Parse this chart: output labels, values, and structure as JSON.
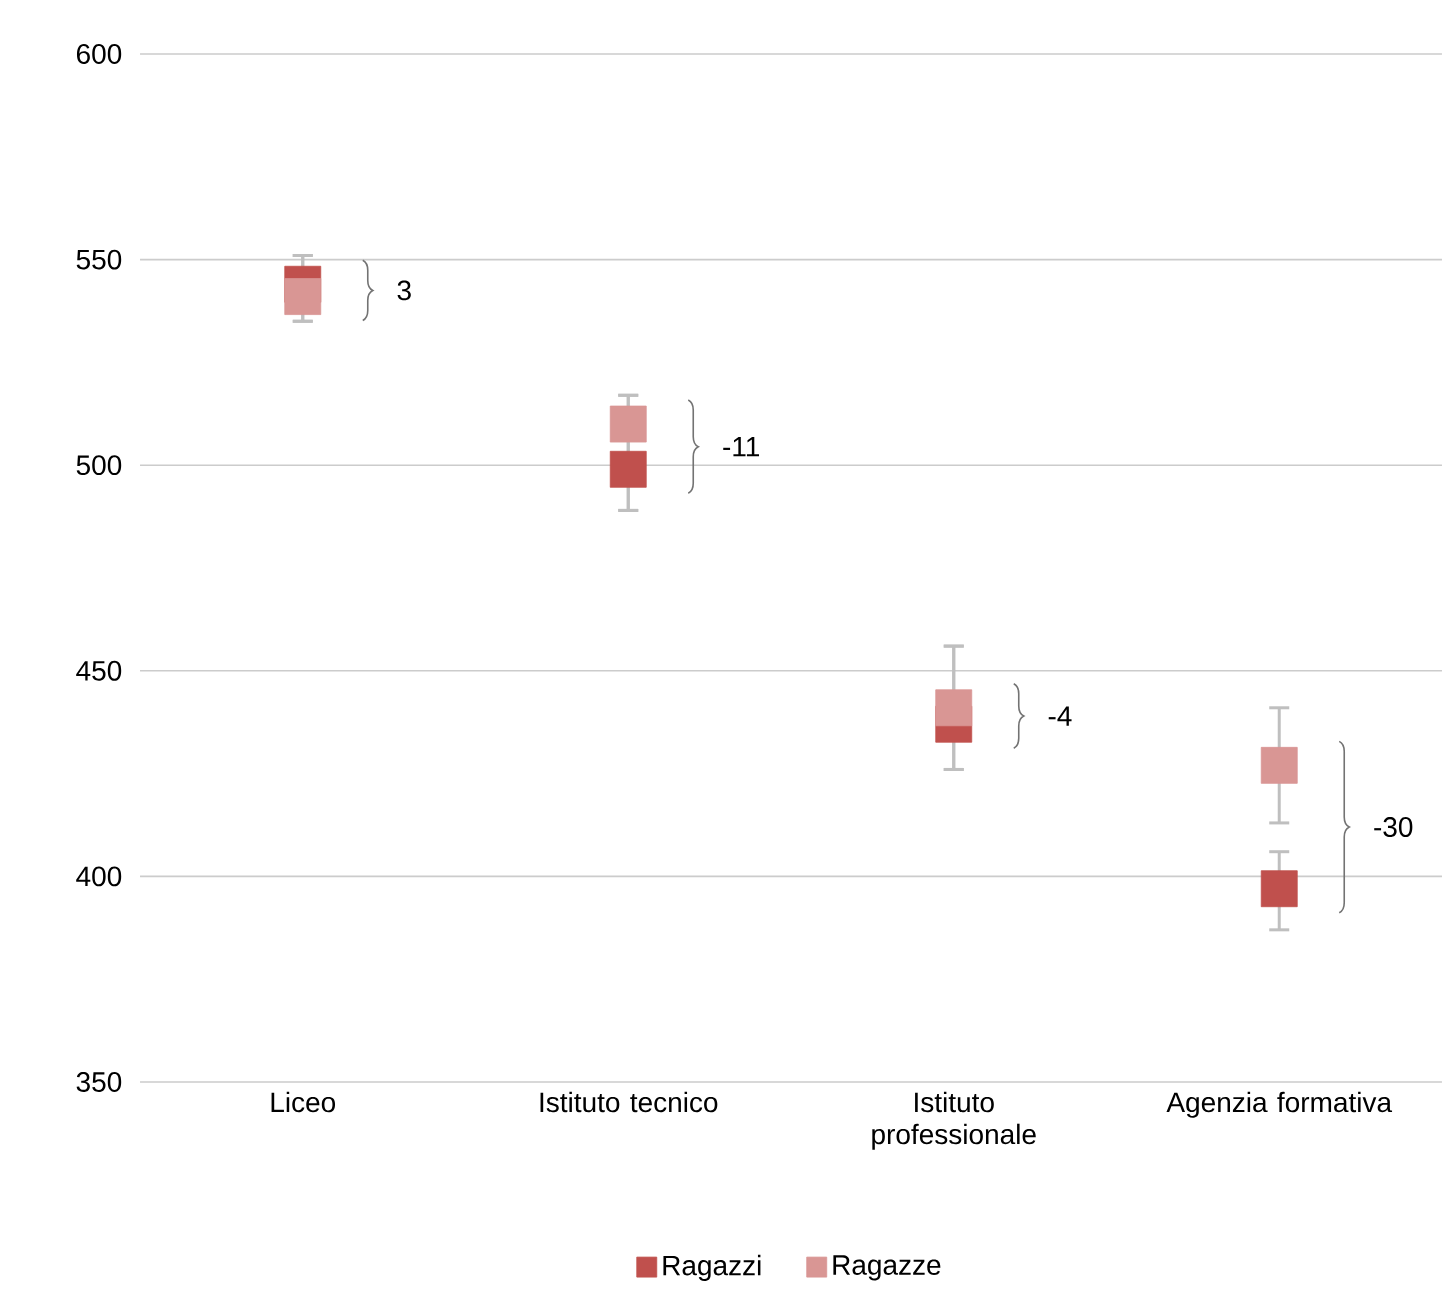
{
  "chart_data": {
    "type": "scatter",
    "categories": [
      "Liceo",
      "Istituto tecnico",
      "Istituto professionale",
      "Agenzia formativa"
    ],
    "series": [
      {
        "name": "Ragazzi",
        "color": "#c0504d",
        "values": [
          544,
          499,
          437,
          397
        ],
        "errors": [
          [
            535,
            551
          ],
          [
            489,
            517
          ],
          [
            426,
            456
          ],
          [
            387,
            406
          ]
        ]
      },
      {
        "name": "Ragazze",
        "color": "#d99694",
        "values": [
          541,
          510,
          441,
          427
        ],
        "errors": [
          [
            535,
            551
          ],
          [
            489,
            517
          ],
          [
            426,
            456
          ],
          [
            413,
            441
          ]
        ]
      }
    ],
    "ylim": [
      350,
      600
    ],
    "yticks": [
      350,
      400,
      450,
      500,
      550,
      600
    ],
    "grid": "y",
    "legend": "bottom",
    "marker": "square",
    "annotations": [
      "3",
      "-11",
      "-4",
      "-30"
    ]
  }
}
